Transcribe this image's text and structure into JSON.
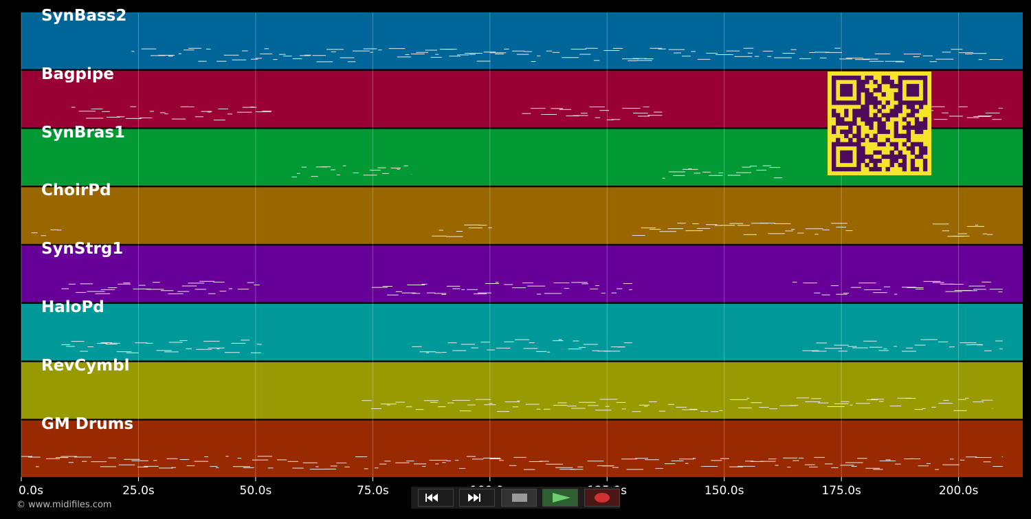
{
  "tracks": [
    {
      "name": "SynBass2",
      "color": "#006699"
    },
    {
      "name": "Bagpipe",
      "color": "#990033"
    },
    {
      "name": "SynBras1",
      "color": "#009933"
    },
    {
      "name": "ChoirPd",
      "color": "#996600"
    },
    {
      "name": "SynStrg1",
      "color": "#660099"
    },
    {
      "name": "HaloPd",
      "color": "#009999"
    },
    {
      "name": "RevCymbl",
      "color": "#999900"
    },
    {
      "name": "GM Drums",
      "color": "#992900"
    }
  ],
  "timeline": {
    "tick_labels": [
      "0.0s",
      "25.0s",
      "50.0s",
      "75.0s",
      "100.0s",
      "125.0s",
      "150.0s",
      "175.0s",
      "200.0s"
    ],
    "ticks_seconds": [
      0,
      25,
      50,
      75,
      100,
      125,
      150,
      175,
      200
    ],
    "max_seconds": 213.7
  },
  "transport": {
    "buttons": [
      {
        "name": "rewind-icon",
        "color": "#111111"
      },
      {
        "name": "fast-forward-icon",
        "color": "#111111"
      },
      {
        "name": "stop-icon",
        "color": "#333333"
      },
      {
        "name": "play-icon",
        "color": "#2e7d32"
      },
      {
        "name": "record-icon",
        "color": "#5a1010"
      }
    ]
  },
  "footer": {
    "copyright": "© www.midifiles.com"
  },
  "qr": {
    "fg": "#4d0b5a",
    "bg": "#f5e42a"
  }
}
